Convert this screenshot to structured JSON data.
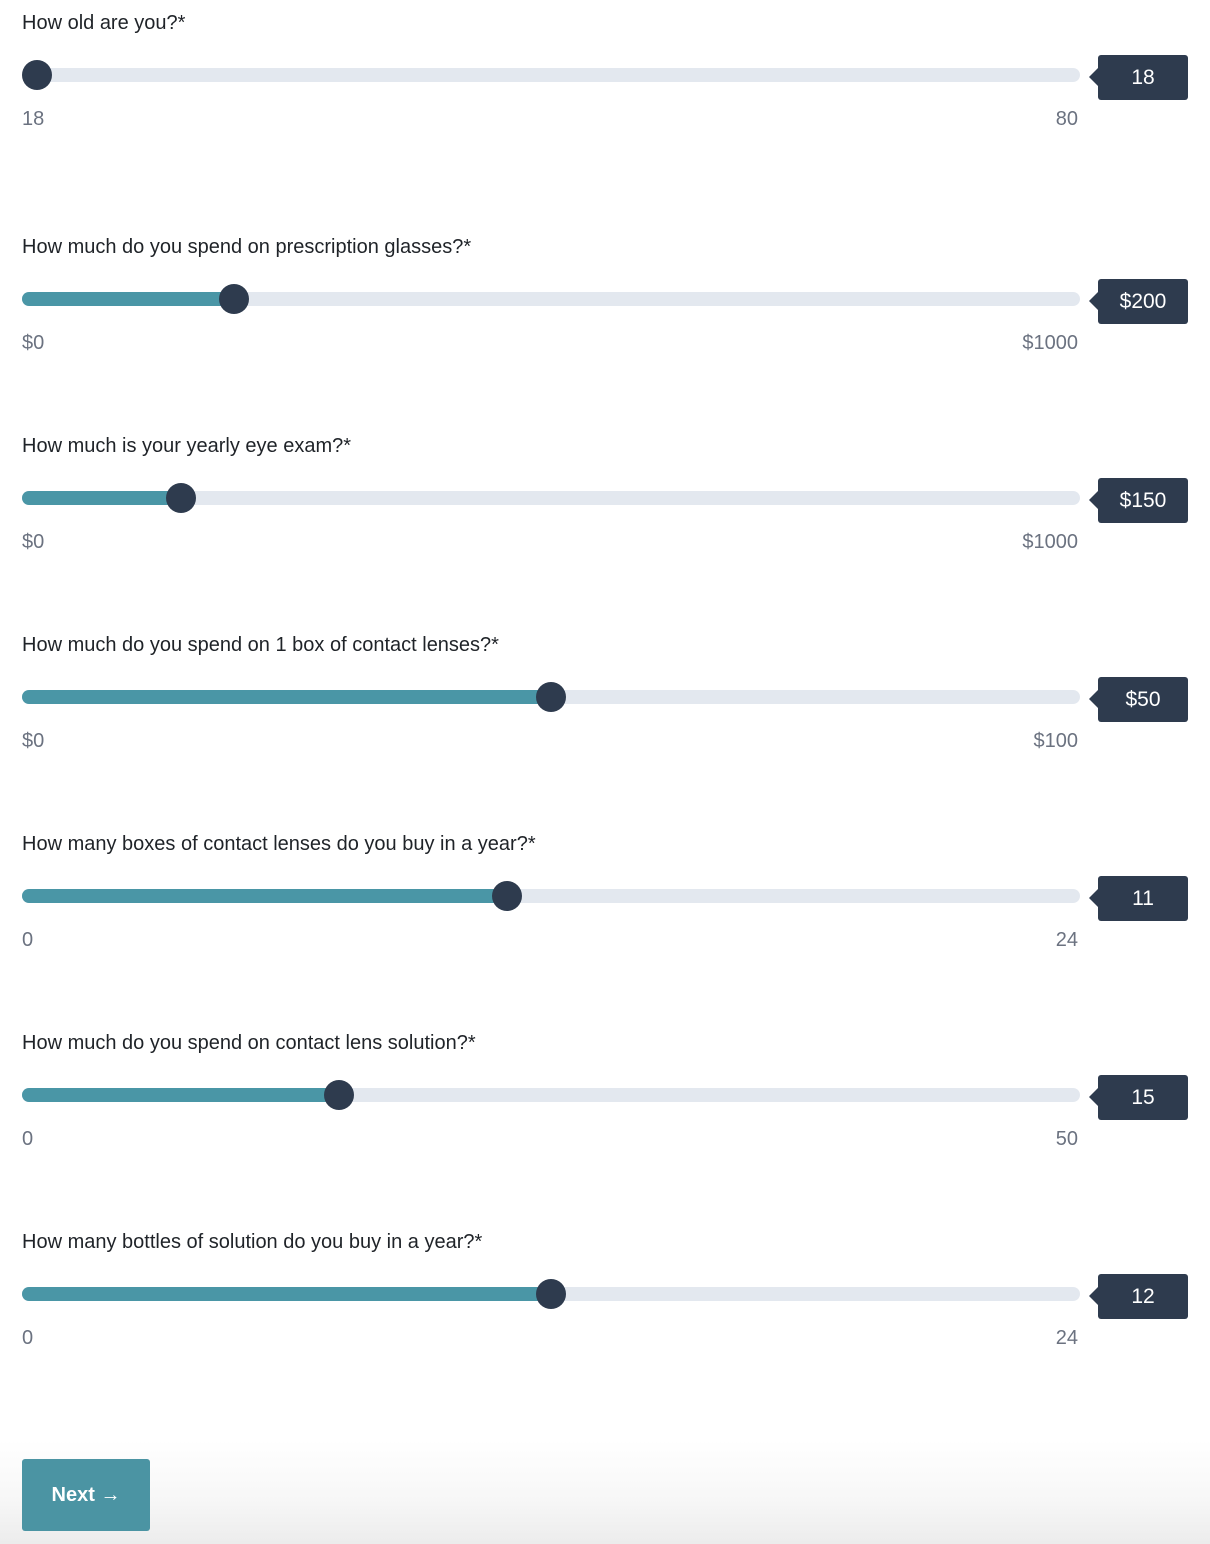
{
  "questions": [
    {
      "label": "How old are you?*",
      "min": 18,
      "max": 80,
      "value": 18,
      "min_label": "18",
      "max_label": "80",
      "value_label": "18"
    },
    {
      "label": "How much do you spend on prescription glasses?*",
      "min": 0,
      "max": 1000,
      "value": 200,
      "min_label": "$0",
      "max_label": "$1000",
      "value_label": "$200"
    },
    {
      "label": "How much is your yearly eye exam?*",
      "min": 0,
      "max": 1000,
      "value": 150,
      "min_label": "$0",
      "max_label": "$1000",
      "value_label": "$150"
    },
    {
      "label": "How much do you spend on 1 box of contact lenses?*",
      "min": 0,
      "max": 100,
      "value": 50,
      "min_label": "$0",
      "max_label": "$100",
      "value_label": "$50"
    },
    {
      "label": "How many boxes of contact lenses do you buy in a year?*",
      "min": 0,
      "max": 24,
      "value": 11,
      "min_label": "0",
      "max_label": "24",
      "value_label": "11"
    },
    {
      "label": "How much do you spend on contact lens solution?*",
      "min": 0,
      "max": 50,
      "value": 15,
      "min_label": "0",
      "max_label": "50",
      "value_label": "15"
    },
    {
      "label": "How many bottles of solution do you buy in a year?*",
      "min": 0,
      "max": 24,
      "value": 12,
      "min_label": "0",
      "max_label": "24",
      "value_label": "12"
    }
  ],
  "next_button": {
    "label": "Next →"
  },
  "colors": {
    "track": "#e3e8ef",
    "fill": "#4a96a6",
    "thumb": "#2e3b4e",
    "badge": "#2e3b4e",
    "button": "#4b94a3"
  }
}
